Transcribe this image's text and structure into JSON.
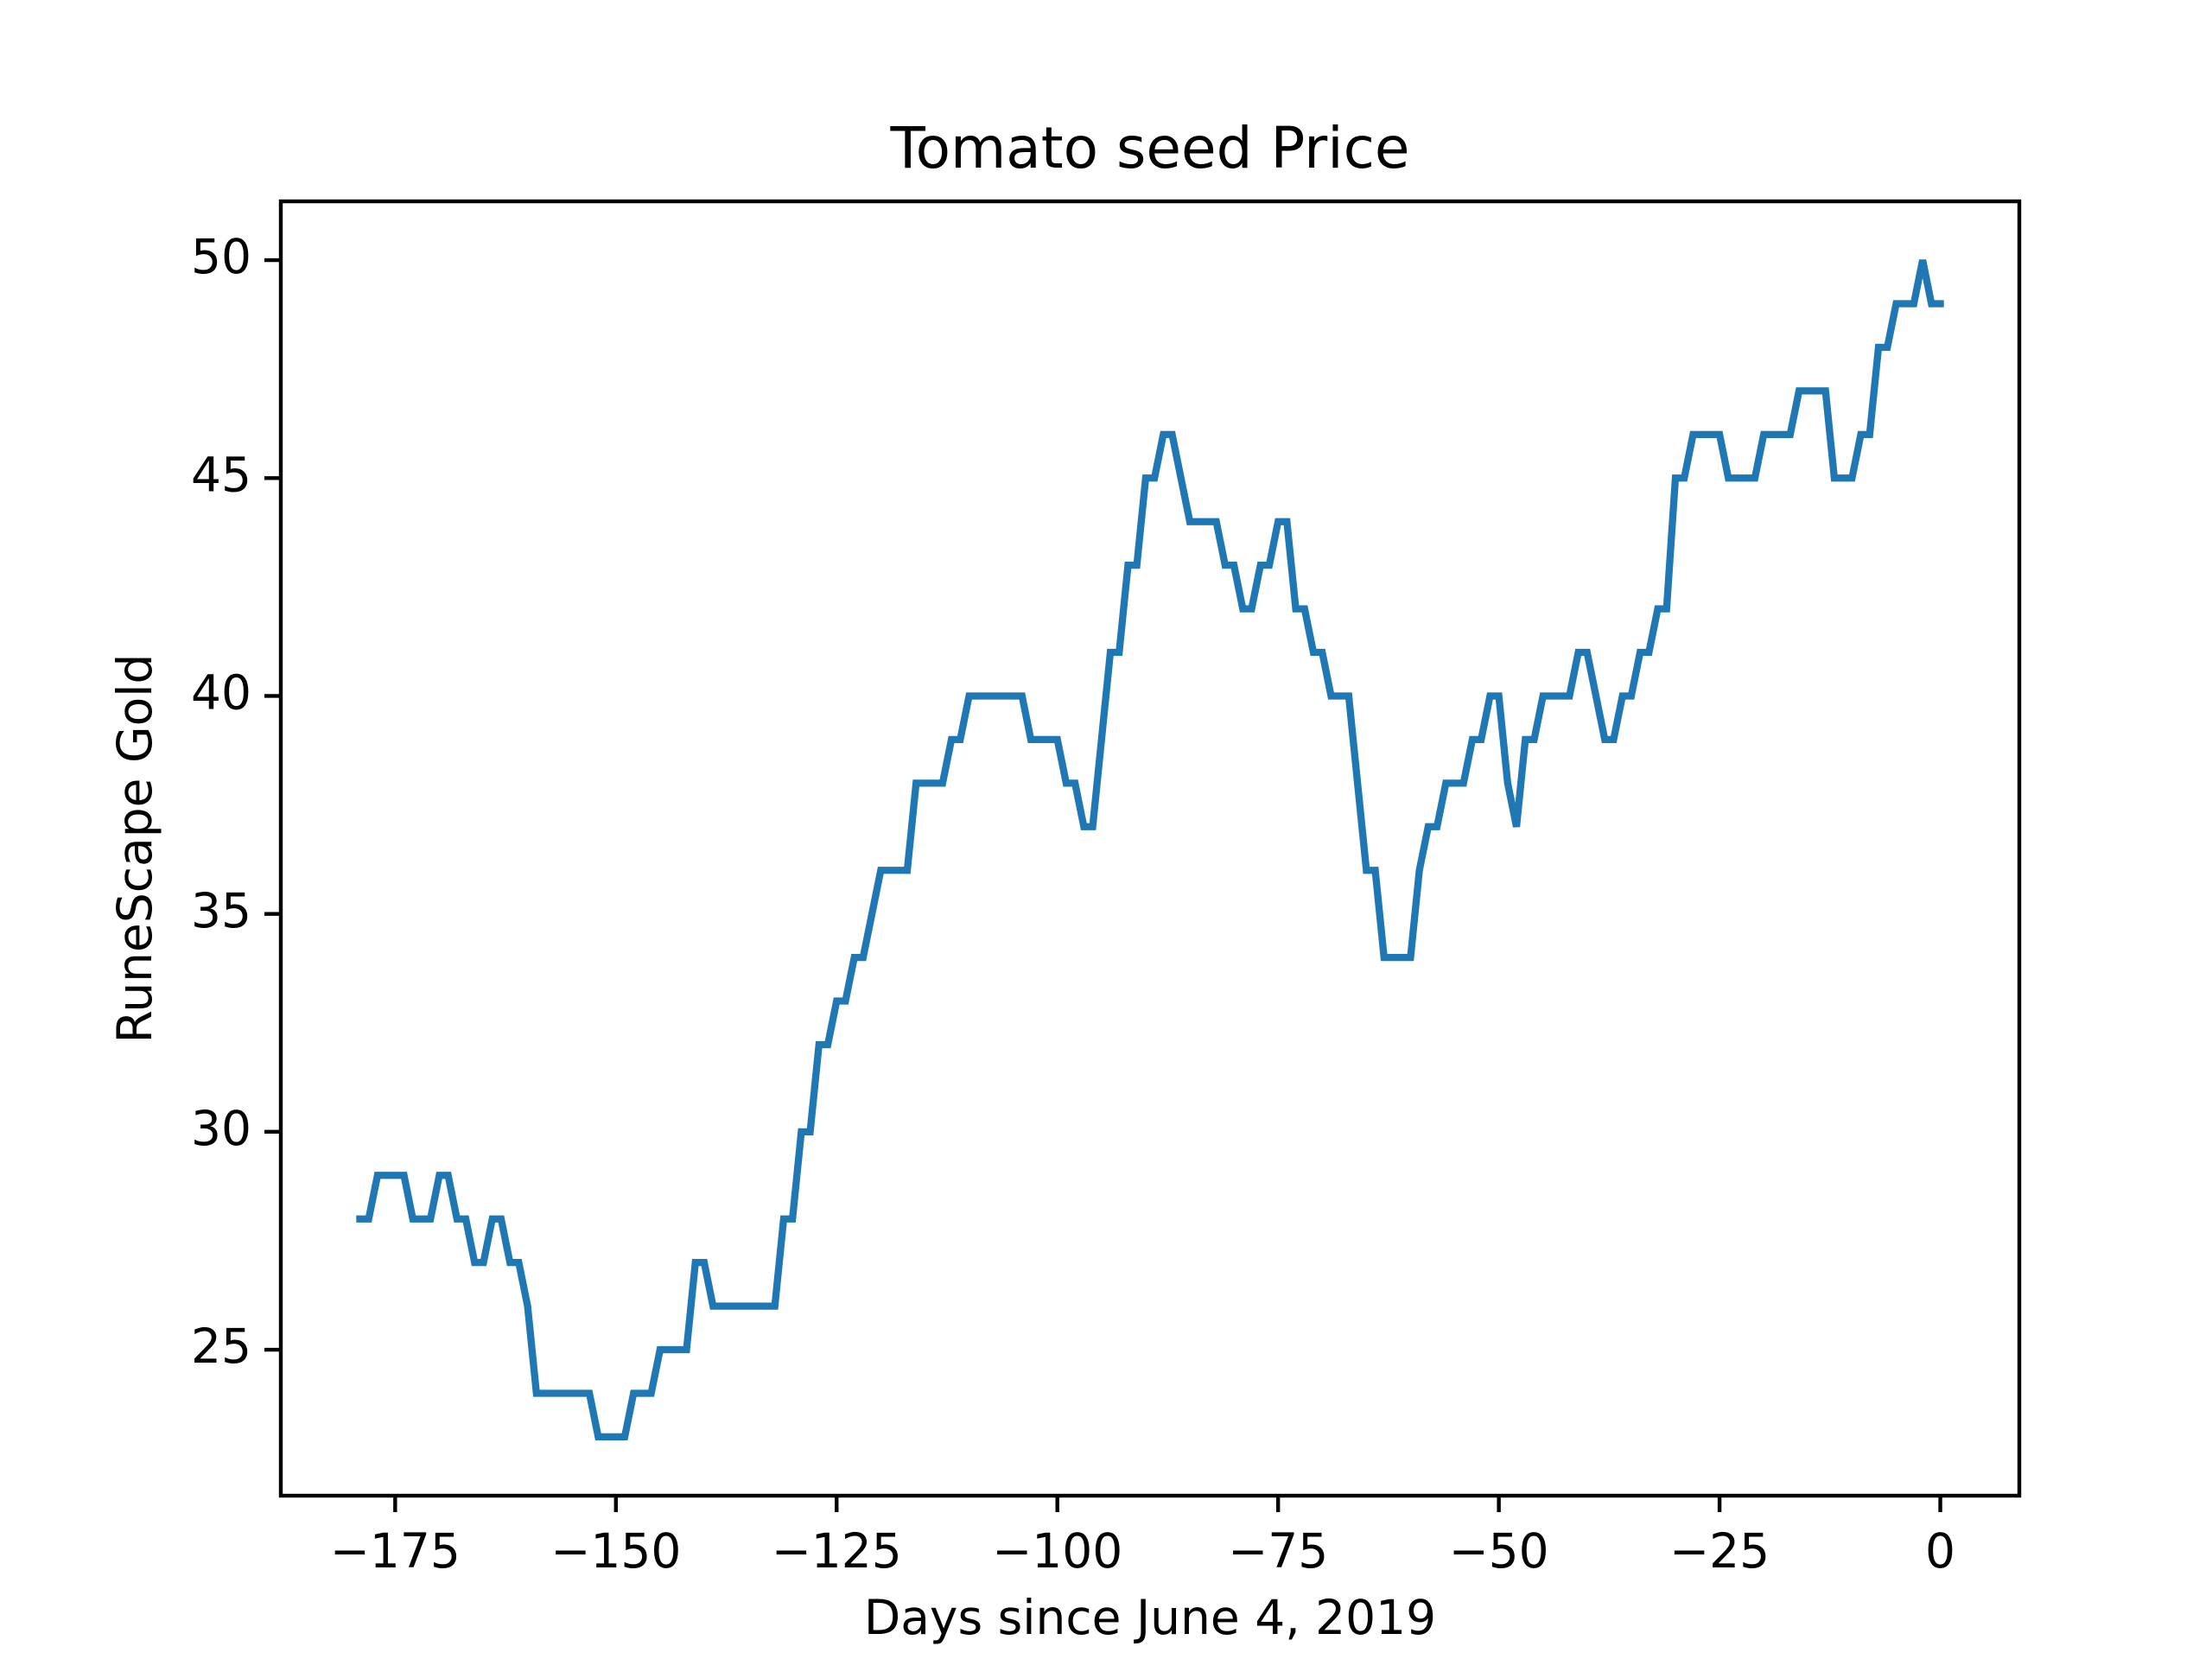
{
  "chart_data": {
    "type": "line",
    "title": "Tomato seed Price",
    "xlabel": "Days since June 4, 2019",
    "ylabel": "RuneScape Gold",
    "x": [
      -179,
      -178,
      -177,
      -176,
      -175,
      -174,
      -173,
      -172,
      -171,
      -170,
      -169,
      -168,
      -167,
      -166,
      -165,
      -164,
      -163,
      -162,
      -161,
      -160,
      -159,
      -158,
      -157,
      -156,
      -155,
      -154,
      -153,
      -152,
      -151,
      -150,
      -149,
      -148,
      -147,
      -146,
      -145,
      -144,
      -143,
      -142,
      -141,
      -140,
      -139,
      -138,
      -137,
      -136,
      -135,
      -134,
      -133,
      -132,
      -131,
      -130,
      -129,
      -128,
      -127,
      -126,
      -125,
      -124,
      -123,
      -122,
      -121,
      -120,
      -119,
      -118,
      -117,
      -116,
      -115,
      -114,
      -113,
      -112,
      -111,
      -110,
      -109,
      -108,
      -107,
      -106,
      -105,
      -104,
      -103,
      -102,
      -101,
      -100,
      -99,
      -98,
      -97,
      -96,
      -95,
      -94,
      -93,
      -92,
      -91,
      -90,
      -89,
      -88,
      -87,
      -86,
      -85,
      -84,
      -83,
      -82,
      -81,
      -80,
      -79,
      -78,
      -77,
      -76,
      -75,
      -74,
      -73,
      -72,
      -71,
      -70,
      -69,
      -68,
      -67,
      -66,
      -65,
      -64,
      -63,
      -62,
      -61,
      -60,
      -59,
      -58,
      -57,
      -56,
      -55,
      -54,
      -53,
      -52,
      -51,
      -50,
      -49,
      -48,
      -47,
      -46,
      -45,
      -44,
      -43,
      -42,
      -41,
      -40,
      -39,
      -38,
      -37,
      -36,
      -35,
      -34,
      -33,
      -32,
      -31,
      -30,
      -29,
      -28,
      -27,
      -26,
      -25,
      -24,
      -23,
      -22,
      -21,
      -20,
      -19,
      -18,
      -17,
      -16,
      -15,
      -14,
      -13,
      -12,
      -11,
      -10,
      -9,
      -8,
      -7,
      -6,
      -5,
      -4,
      -3,
      -2,
      -1,
      0
    ],
    "series": [
      {
        "name": "Tomato seed",
        "color": "#1f77b4",
        "values": [
          28,
          28,
          29,
          29,
          29,
          29,
          28,
          28,
          28,
          29,
          29,
          28,
          28,
          27,
          27,
          28,
          28,
          27,
          27,
          26,
          24,
          24,
          24,
          24,
          24,
          24,
          24,
          23,
          23,
          23,
          23,
          24,
          24,
          24,
          25,
          25,
          25,
          25,
          27,
          27,
          26,
          26,
          26,
          26,
          26,
          26,
          26,
          26,
          28,
          28,
          30,
          30,
          32,
          32,
          33,
          33,
          34,
          34,
          35,
          36,
          36,
          36,
          36,
          38,
          38,
          38,
          38,
          39,
          39,
          40,
          40,
          40,
          40,
          40,
          40,
          40,
          39,
          39,
          39,
          39,
          38,
          38,
          37,
          37,
          39,
          41,
          41,
          43,
          43,
          45,
          45,
          46,
          46,
          45,
          44,
          44,
          44,
          44,
          43,
          43,
          42,
          42,
          43,
          43,
          44,
          44,
          42,
          42,
          41,
          41,
          40,
          40,
          40,
          38,
          36,
          36,
          34,
          34,
          34,
          34,
          36,
          37,
          37,
          38,
          38,
          38,
          39,
          39,
          40,
          40,
          38,
          37,
          39,
          39,
          40,
          40,
          40,
          40,
          41,
          41,
          40,
          39,
          39,
          40,
          40,
          41,
          41,
          42,
          42,
          45,
          45,
          46,
          46,
          46,
          46,
          45,
          45,
          45,
          45,
          46,
          46,
          46,
          46,
          47,
          47,
          47,
          47,
          45,
          45,
          45,
          46,
          46,
          48,
          48,
          49,
          49,
          49,
          50,
          49,
          49
        ]
      }
    ],
    "xlim": [
      -187.95,
      8.95
    ],
    "ylim": [
      21.65,
      51.35
    ],
    "xticks": [
      {
        "value": -175,
        "label": "−175"
      },
      {
        "value": -150,
        "label": "−150"
      },
      {
        "value": -125,
        "label": "−125"
      },
      {
        "value": -100,
        "label": "−100"
      },
      {
        "value": -75,
        "label": "−75"
      },
      {
        "value": -50,
        "label": "−50"
      },
      {
        "value": -25,
        "label": "−25"
      },
      0
    ],
    "yticks": [
      25,
      30,
      35,
      40,
      45,
      50
    ],
    "grid": false
  }
}
